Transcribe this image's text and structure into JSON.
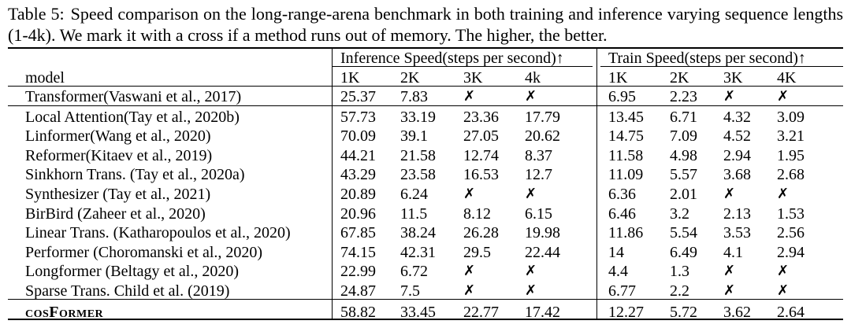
{
  "caption": {
    "label": "Table 5:",
    "text": "Speed comparison on the long-range-arena benchmark in both training and inference varying sequence lengths (1-4k). We mark it with a cross if a method runs out of memory. The higher, the better."
  },
  "header": {
    "inference_group": "Inference Speed(steps per second)↑",
    "train_group": "Train Speed(steps per second)↑",
    "model_col": "model",
    "inference_lengths": [
      "1K",
      "2K",
      "3K",
      "4k"
    ],
    "train_lengths": [
      "1K",
      "2K",
      "3K",
      "4K"
    ]
  },
  "cross_symbol": "✗",
  "rows": [
    {
      "model": "Transformer(Vaswani et al., 2017)",
      "inference": [
        "25.37",
        "7.83",
        "✗",
        "✗"
      ],
      "train": [
        "6.95",
        "2.23",
        "✗",
        "✗"
      ]
    },
    {
      "model": "Local Attention(Tay et al., 2020b)",
      "inference": [
        "57.73",
        "33.19",
        "23.36",
        "17.79"
      ],
      "train": [
        "13.45",
        "6.71",
        "4.32",
        "3.09"
      ]
    },
    {
      "model": "Linformer(Wang et al., 2020)",
      "inference": [
        "70.09",
        "39.1",
        "27.05",
        "20.62"
      ],
      "train": [
        "14.75",
        "7.09",
        "4.52",
        "3.21"
      ]
    },
    {
      "model": "Reformer(Kitaev et al., 2019)",
      "inference": [
        "44.21",
        "21.58",
        "12.74",
        "8.37"
      ],
      "train": [
        "11.58",
        "4.98",
        "2.94",
        "1.95"
      ]
    },
    {
      "model": "Sinkhorn Trans. (Tay et al., 2020a)",
      "inference": [
        "43.29",
        "23.58",
        "16.53",
        "12.7"
      ],
      "train": [
        "11.09",
        "5.57",
        "3.68",
        "2.68"
      ]
    },
    {
      "model": "Synthesizer (Tay et al., 2021)",
      "inference": [
        "20.89",
        "6.24",
        "✗",
        "✗"
      ],
      "train": [
        "6.36",
        "2.01",
        "✗",
        "✗"
      ]
    },
    {
      "model": "BirBird (Zaheer et al., 2020)",
      "inference": [
        "20.96",
        "11.5",
        "8.12",
        "6.15"
      ],
      "train": [
        "6.46",
        "3.2",
        "2.13",
        "1.53"
      ]
    },
    {
      "model": "Linear Trans. (Katharopoulos et al., 2020)",
      "inference": [
        "67.85",
        "38.24",
        "26.28",
        "19.98"
      ],
      "train": [
        "11.86",
        "5.54",
        "3.53",
        "2.56"
      ]
    },
    {
      "model": "Performer (Choromanski et al., 2020)",
      "inference": [
        "74.15",
        "42.31",
        "29.5",
        "22.44"
      ],
      "train": [
        "14",
        "6.49",
        "4.1",
        "2.94"
      ]
    },
    {
      "model": "Longformer (Beltagy et al., 2020)",
      "inference": [
        "22.99",
        "6.72",
        "✗",
        "✗"
      ],
      "train": [
        "4.4",
        "1.3",
        "✗",
        "✗"
      ]
    },
    {
      "model": "Sparse Trans. Child et al. (2019)",
      "inference": [
        "24.87",
        "7.5",
        "✗",
        "✗"
      ],
      "train": [
        "6.77",
        "2.2",
        "✗",
        "✗"
      ]
    },
    {
      "model": "cosFormer",
      "inference": [
        "58.82",
        "33.45",
        "22.77",
        "17.42"
      ],
      "train": [
        "12.27",
        "5.72",
        "3.62",
        "2.64"
      ],
      "highlight": true
    }
  ]
}
